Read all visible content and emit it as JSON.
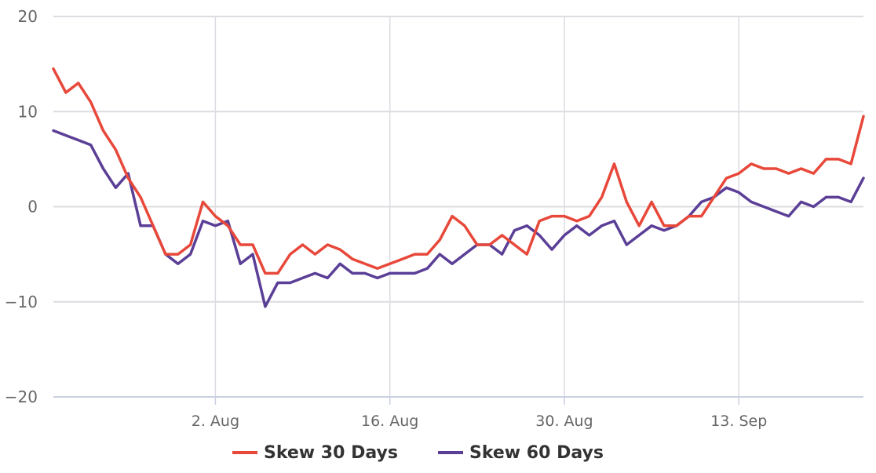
{
  "colors": {
    "series_30": "#E8483A",
    "series_60": "#5B3F97",
    "grid": "#DCDCE2",
    "axis": "#C9D0E0"
  },
  "chart_data": {
    "type": "line",
    "title": "",
    "xlabel": "",
    "ylabel": "",
    "ylim": [
      -20,
      20
    ],
    "yticks": [
      "20",
      "10",
      "0",
      "−10",
      "−20"
    ],
    "ytick_values": [
      20,
      10,
      0,
      -10,
      -20
    ],
    "xlim": [
      "2024-07-20",
      "2024-09-23"
    ],
    "xticks": [
      "2. Aug",
      "16. Aug",
      "30. Aug",
      "13. Sep"
    ],
    "xtick_values": [
      "2024-08-02",
      "2024-08-16",
      "2024-08-30",
      "2024-09-13"
    ],
    "grid": true,
    "legend_position": "bottom",
    "series": [
      {
        "name": "Skew 30 Days",
        "x": [
          "2024-07-20",
          "2024-07-21",
          "2024-07-22",
          "2024-07-23",
          "2024-07-24",
          "2024-07-25",
          "2024-07-26",
          "2024-07-27",
          "2024-07-28",
          "2024-07-29",
          "2024-07-30",
          "2024-07-31",
          "2024-08-01",
          "2024-08-02",
          "2024-08-03",
          "2024-08-04",
          "2024-08-05",
          "2024-08-06",
          "2024-08-07",
          "2024-08-08",
          "2024-08-09",
          "2024-08-10",
          "2024-08-11",
          "2024-08-12",
          "2024-08-13",
          "2024-08-14",
          "2024-08-15",
          "2024-08-16",
          "2024-08-17",
          "2024-08-18",
          "2024-08-19",
          "2024-08-20",
          "2024-08-21",
          "2024-08-22",
          "2024-08-23",
          "2024-08-24",
          "2024-08-25",
          "2024-08-26",
          "2024-08-27",
          "2024-08-28",
          "2024-08-29",
          "2024-08-30",
          "2024-08-31",
          "2024-09-01",
          "2024-09-02",
          "2024-09-03",
          "2024-09-04",
          "2024-09-05",
          "2024-09-06",
          "2024-09-07",
          "2024-09-08",
          "2024-09-09",
          "2024-09-10",
          "2024-09-11",
          "2024-09-12",
          "2024-09-13",
          "2024-09-14",
          "2024-09-15",
          "2024-09-16",
          "2024-09-17",
          "2024-09-18",
          "2024-09-19",
          "2024-09-20",
          "2024-09-21",
          "2024-09-22",
          "2024-09-23"
        ],
        "y": [
          14.5,
          12,
          13,
          11,
          8,
          6,
          3,
          1,
          -2,
          -5,
          -5,
          -4,
          0.5,
          -1,
          -2,
          -4,
          -4,
          -7,
          -7,
          -5,
          -4,
          -5,
          -4,
          -4.5,
          -5.5,
          -6,
          -6.5,
          -6,
          -5.5,
          -5,
          -5,
          -3.5,
          -1,
          -2,
          -4,
          -4,
          -3,
          -4,
          -5,
          -1.5,
          -1,
          -1,
          -1.5,
          -1,
          1,
          4.5,
          0.5,
          -2,
          0.5,
          -2,
          -2,
          -1,
          -1,
          1,
          3,
          3.5,
          4.5,
          4,
          4,
          3.5,
          4,
          3.5,
          5,
          5,
          4.5,
          9.5
        ]
      },
      {
        "name": "Skew 60 Days",
        "x": [
          "2024-07-20",
          "2024-07-21",
          "2024-07-22",
          "2024-07-23",
          "2024-07-24",
          "2024-07-25",
          "2024-07-26",
          "2024-07-27",
          "2024-07-28",
          "2024-07-29",
          "2024-07-30",
          "2024-07-31",
          "2024-08-01",
          "2024-08-02",
          "2024-08-03",
          "2024-08-04",
          "2024-08-05",
          "2024-08-06",
          "2024-08-07",
          "2024-08-08",
          "2024-08-09",
          "2024-08-10",
          "2024-08-11",
          "2024-08-12",
          "2024-08-13",
          "2024-08-14",
          "2024-08-15",
          "2024-08-16",
          "2024-08-17",
          "2024-08-18",
          "2024-08-19",
          "2024-08-20",
          "2024-08-21",
          "2024-08-22",
          "2024-08-23",
          "2024-08-24",
          "2024-08-25",
          "2024-08-26",
          "2024-08-27",
          "2024-08-28",
          "2024-08-29",
          "2024-08-30",
          "2024-08-31",
          "2024-09-01",
          "2024-09-02",
          "2024-09-03",
          "2024-09-04",
          "2024-09-05",
          "2024-09-06",
          "2024-09-07",
          "2024-09-08",
          "2024-09-09",
          "2024-09-10",
          "2024-09-11",
          "2024-09-12",
          "2024-09-13",
          "2024-09-14",
          "2024-09-15",
          "2024-09-16",
          "2024-09-17",
          "2024-09-18",
          "2024-09-19",
          "2024-09-20",
          "2024-09-21",
          "2024-09-22",
          "2024-09-23"
        ],
        "y": [
          8,
          7.5,
          7,
          6.5,
          4,
          2,
          3.5,
          -2,
          -2,
          -5,
          -6,
          -5,
          -1.5,
          -2,
          -1.5,
          -6,
          -5,
          -10.5,
          -8,
          -8,
          -7.5,
          -7,
          -7.5,
          -6,
          -7,
          -7,
          -7.5,
          -7,
          -7,
          -7,
          -6.5,
          -5,
          -6,
          -5,
          -4,
          -4,
          -5,
          -2.5,
          -2,
          -3,
          -4.5,
          -3,
          -2,
          -3,
          -2,
          -1.5,
          -4,
          -3,
          -2,
          -2.5,
          -2,
          -1,
          0.5,
          1,
          2,
          1.5,
          0.5,
          0,
          -0.5,
          -1,
          0.5,
          0,
          1,
          1,
          0.5,
          3
        ]
      }
    ]
  }
}
